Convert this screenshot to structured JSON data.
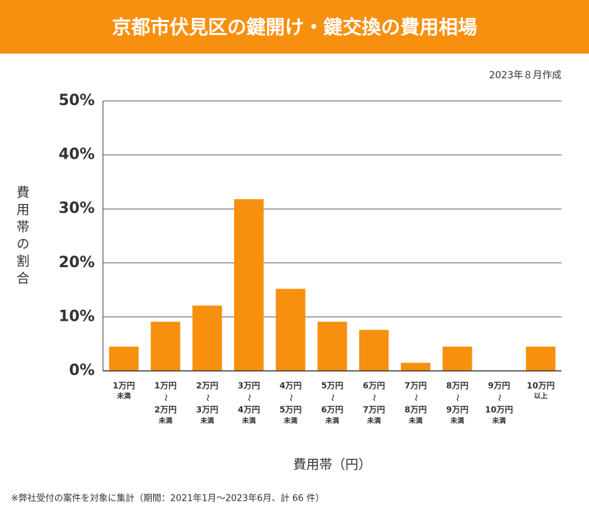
{
  "chart_data": {
    "type": "bar",
    "title": "京都市伏見区の鍵開け・鍵交換の費用相場",
    "subtitle": "2023年８月作成",
    "y_label": "費用帯の割合",
    "x_label": "費用帯（円）",
    "footnote": "※弊社受付の案件を対象に集計（期間：2021年1月～2023年6月、計 66 件）",
    "categories": [
      [
        "1万円",
        "未満"
      ],
      [
        "1万円",
        "〜",
        "2万円",
        "未満"
      ],
      [
        "2万円",
        "〜",
        "3万円",
        "未満"
      ],
      [
        "3万円",
        "〜",
        "4万円",
        "未満"
      ],
      [
        "4万円",
        "〜",
        "5万円",
        "未満"
      ],
      [
        "5万円",
        "〜",
        "6万円",
        "未満"
      ],
      [
        "6万円",
        "〜",
        "7万円",
        "未満"
      ],
      [
        "7万円",
        "〜",
        "8万円",
        "未満"
      ],
      [
        "8万円",
        "〜",
        "9万円",
        "未満"
      ],
      [
        "9万円",
        "〜",
        "10万円",
        "未満"
      ],
      [
        "10万円",
        "以上"
      ]
    ],
    "values": [
      4.5,
      9.1,
      12.1,
      31.8,
      15.2,
      9.1,
      7.6,
      1.5,
      4.5,
      0,
      4.5
    ],
    "color": "#f7900f",
    "ylim": [
      0,
      50
    ],
    "yticks": [
      {
        "value": 0,
        "label": "0%"
      },
      {
        "value": 10,
        "label": "10%"
      },
      {
        "value": 20,
        "label": "20%"
      },
      {
        "value": 30,
        "label": "30%"
      },
      {
        "value": 40,
        "label": "40%"
      },
      {
        "value": 50,
        "label": "50%"
      }
    ],
    "grid": true
  }
}
